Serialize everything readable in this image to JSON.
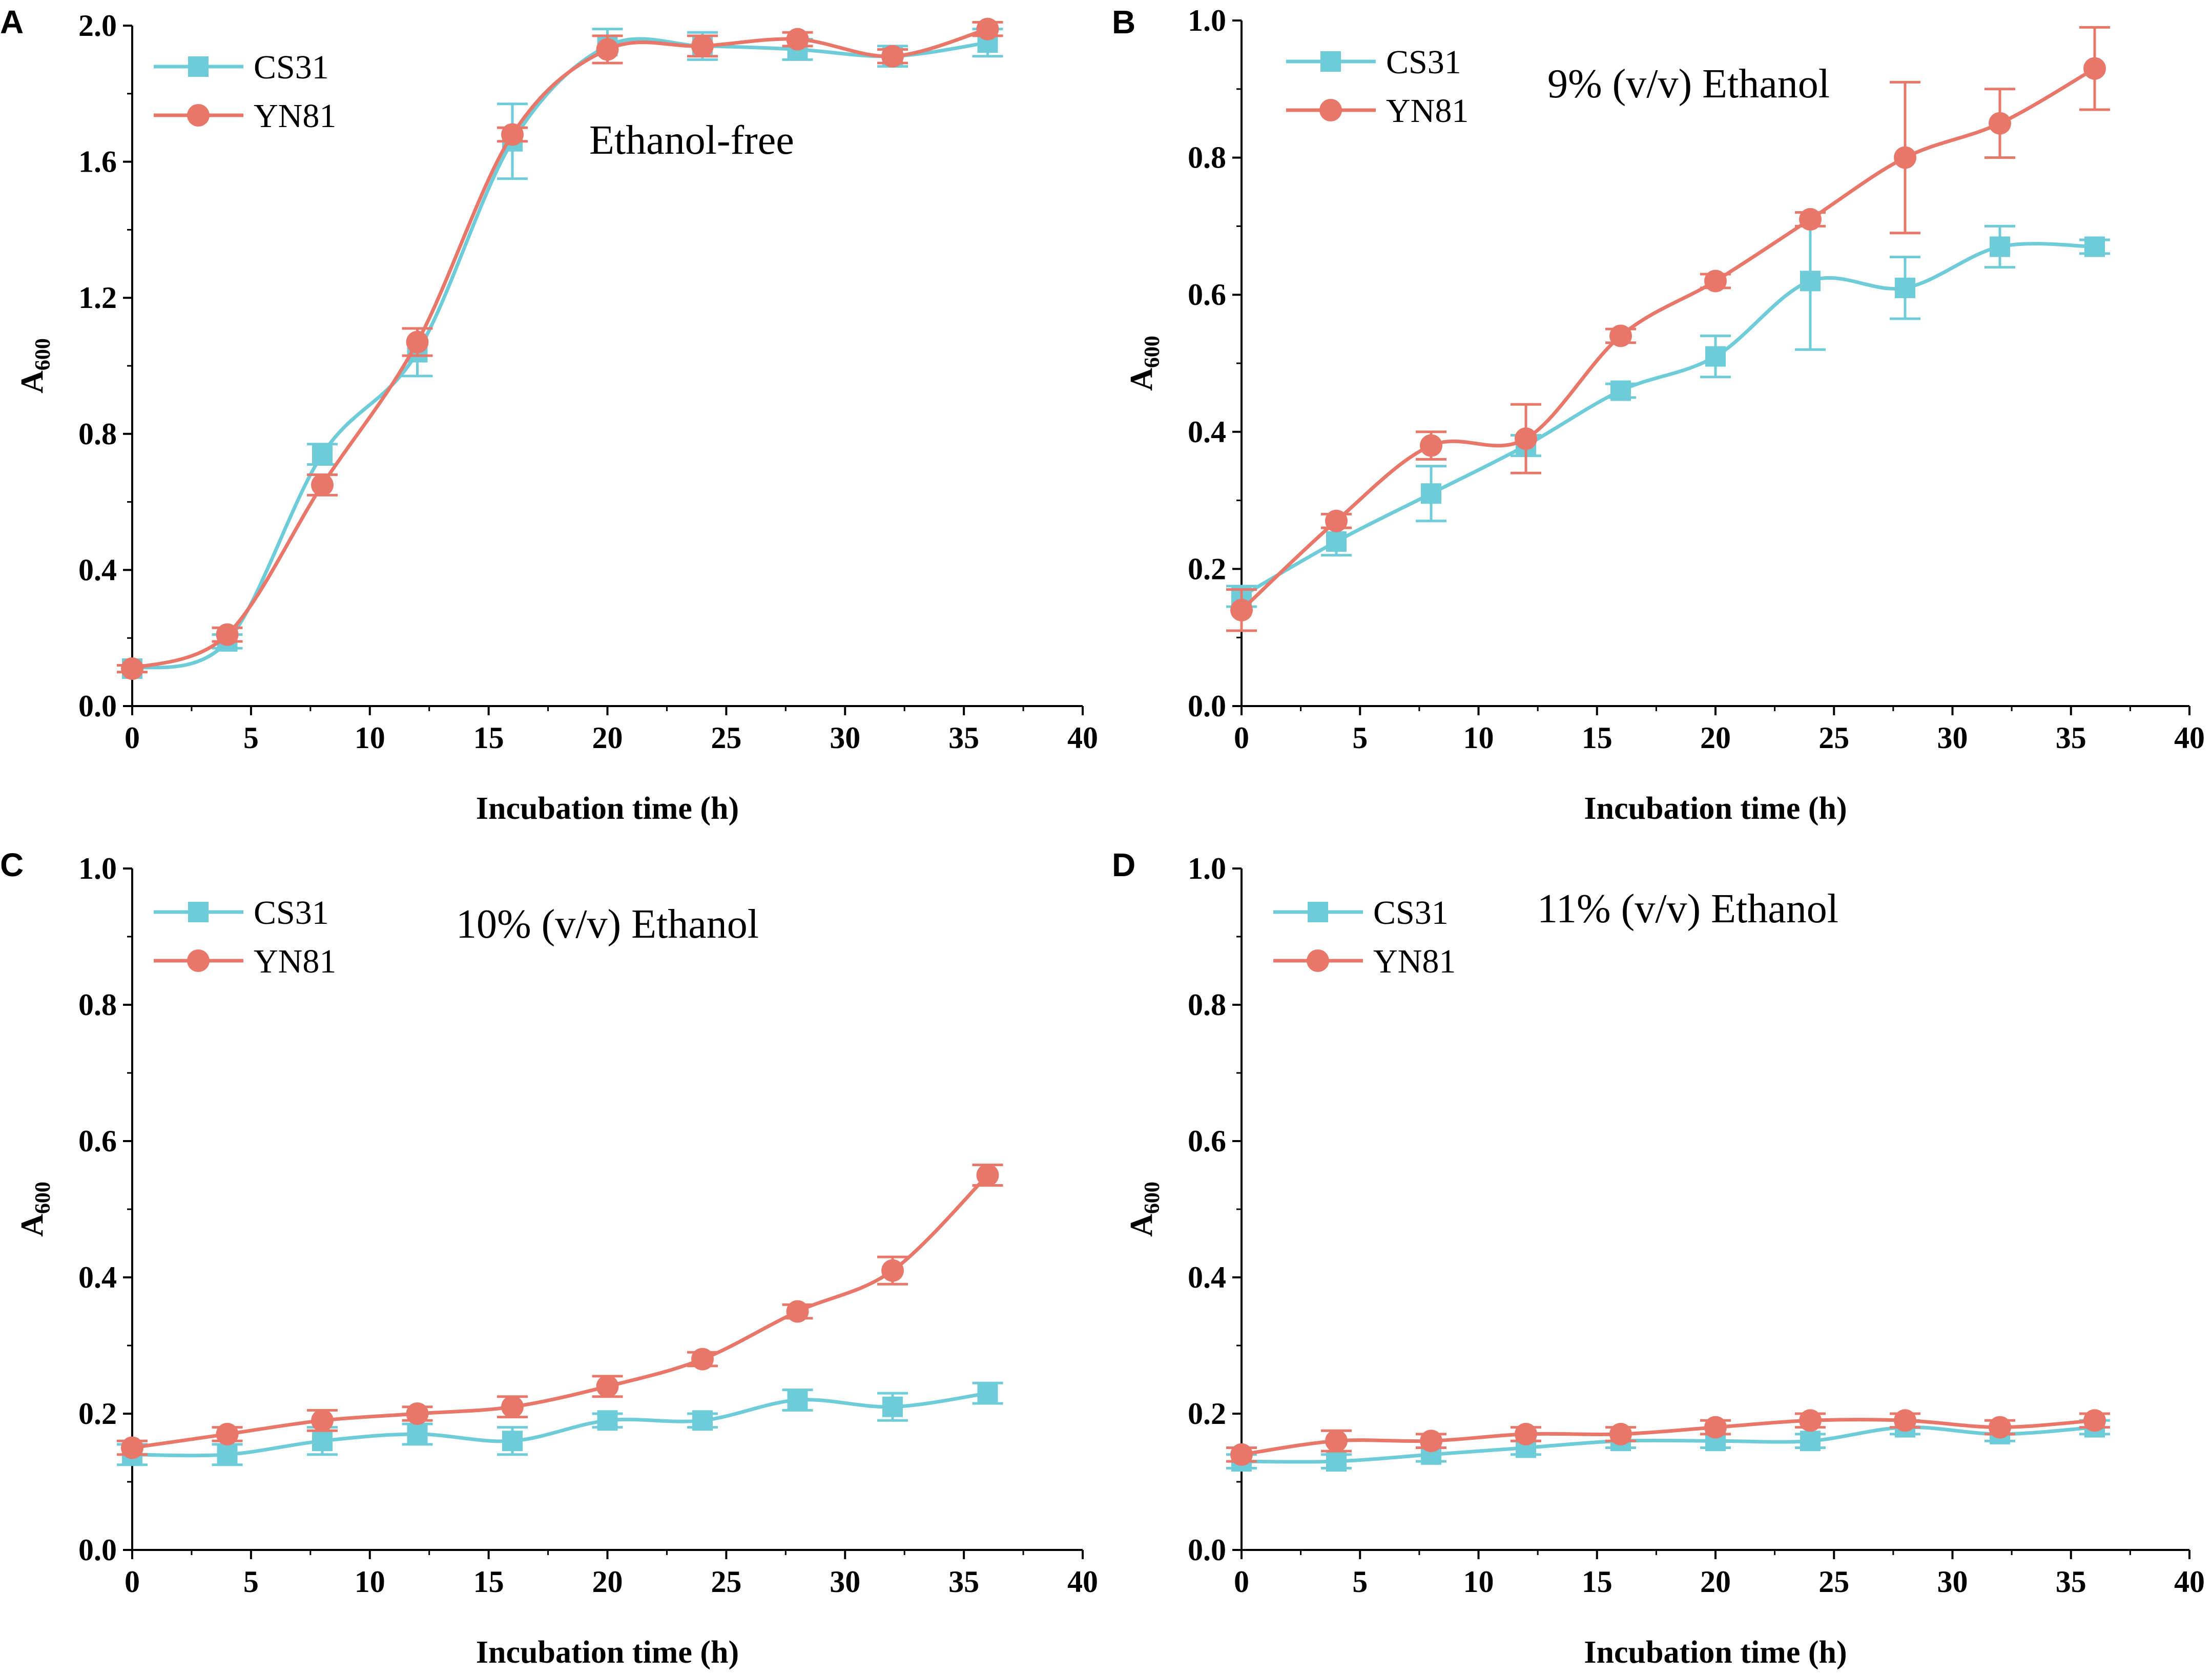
{
  "chart_data": [
    {
      "panel": "A",
      "type": "line",
      "title": "",
      "annotation": "Ethanol-free",
      "xlabel": "Incubation time (h)",
      "ylabel_main": "A",
      "ylabel_sub": "600",
      "xlim": [
        0,
        40
      ],
      "ylim": [
        0,
        2.0
      ],
      "xticks": [
        0,
        5,
        10,
        15,
        20,
        25,
        30,
        35,
        40
      ],
      "yticks": [
        0.0,
        0.4,
        0.8,
        1.2,
        1.6,
        2.0
      ],
      "ytick_labels": [
        "0.0",
        "0.4",
        "0.8",
        "1.2",
        "1.6",
        "2.0"
      ],
      "x": [
        0,
        4,
        8,
        12,
        16,
        20,
        24,
        28,
        32,
        36
      ],
      "series": [
        {
          "name": "CS31",
          "marker": "square",
          "color": "#6ecbd8",
          "values": [
            0.11,
            0.19,
            0.74,
            1.04,
            1.66,
            1.94,
            1.94,
            1.93,
            1.91,
            1.95
          ],
          "errors": [
            0.01,
            0.02,
            0.03,
            0.07,
            0.11,
            0.05,
            0.04,
            0.03,
            0.03,
            0.04
          ]
        },
        {
          "name": "YN81",
          "marker": "circle",
          "color": "#e8776a",
          "values": [
            0.11,
            0.21,
            0.65,
            1.07,
            1.68,
            1.93,
            1.94,
            1.96,
            1.91,
            1.99
          ],
          "errors": [
            0.01,
            0.02,
            0.03,
            0.04,
            0.02,
            0.04,
            0.03,
            0.02,
            0.02,
            0.02
          ]
        }
      ]
    },
    {
      "panel": "B",
      "type": "line",
      "title": "",
      "annotation": "9% (v/v) Ethanol",
      "xlabel": "Incubation time (h)",
      "ylabel_main": "A",
      "ylabel_sub": "600",
      "xlim": [
        0,
        40
      ],
      "ylim": [
        0,
        1.0
      ],
      "xticks": [
        0,
        5,
        10,
        15,
        20,
        25,
        30,
        35,
        40
      ],
      "yticks": [
        0.0,
        0.2,
        0.4,
        0.6,
        0.8,
        1.0
      ],
      "ytick_labels": [
        "0.0",
        "0.2",
        "0.4",
        "0.6",
        "0.8",
        "1.0"
      ],
      "x": [
        0,
        4,
        8,
        12,
        16,
        20,
        24,
        28,
        32,
        36
      ],
      "series": [
        {
          "name": "CS31",
          "marker": "square",
          "color": "#6ecbd8",
          "values": [
            0.16,
            0.24,
            0.31,
            0.38,
            0.46,
            0.51,
            0.62,
            0.61,
            0.67,
            0.67
          ],
          "errors": [
            0.015,
            0.02,
            0.04,
            0.015,
            0.01,
            0.03,
            0.1,
            0.045,
            0.03,
            0.01
          ]
        },
        {
          "name": "YN81",
          "marker": "circle",
          "color": "#e8776a",
          "values": [
            0.14,
            0.27,
            0.38,
            0.39,
            0.54,
            0.62,
            0.71,
            0.8,
            0.85,
            0.93
          ],
          "errors": [
            0.03,
            0.01,
            0.02,
            0.05,
            0.01,
            0.01,
            0.01,
            0.11,
            0.05,
            0.06
          ]
        }
      ]
    },
    {
      "panel": "C",
      "type": "line",
      "title": "",
      "annotation": "10% (v/v) Ethanol",
      "xlabel": "Incubation time (h)",
      "ylabel_main": "A",
      "ylabel_sub": "600",
      "xlim": [
        0,
        40
      ],
      "ylim": [
        0,
        1.0
      ],
      "xticks": [
        0,
        5,
        10,
        15,
        20,
        25,
        30,
        35,
        40
      ],
      "yticks": [
        0.0,
        0.2,
        0.4,
        0.6,
        0.8,
        1.0
      ],
      "ytick_labels": [
        "0.0",
        "0.2",
        "0.4",
        "0.6",
        "0.8",
        "1.0"
      ],
      "x": [
        0,
        4,
        8,
        12,
        16,
        20,
        24,
        28,
        32,
        36
      ],
      "series": [
        {
          "name": "CS31",
          "marker": "square",
          "color": "#6ecbd8",
          "values": [
            0.14,
            0.14,
            0.16,
            0.17,
            0.16,
            0.19,
            0.19,
            0.22,
            0.21,
            0.23
          ],
          "errors": [
            0.015,
            0.015,
            0.02,
            0.015,
            0.02,
            0.01,
            0.01,
            0.015,
            0.02,
            0.015
          ]
        },
        {
          "name": "YN81",
          "marker": "circle",
          "color": "#e8776a",
          "values": [
            0.15,
            0.17,
            0.19,
            0.2,
            0.21,
            0.24,
            0.28,
            0.35,
            0.41,
            0.55
          ],
          "errors": [
            0.01,
            0.01,
            0.015,
            0.01,
            0.015,
            0.015,
            0.01,
            0.01,
            0.02,
            0.015
          ]
        }
      ]
    },
    {
      "panel": "D",
      "type": "line",
      "title": "",
      "annotation": "11% (v/v) Ethanol",
      "xlabel": "Incubation time (h)",
      "ylabel_main": "A",
      "ylabel_sub": "600",
      "xlim": [
        0,
        40
      ],
      "ylim": [
        0,
        1.0
      ],
      "xticks": [
        0,
        5,
        10,
        15,
        20,
        25,
        30,
        35,
        40
      ],
      "yticks": [
        0.0,
        0.2,
        0.4,
        0.6,
        0.8,
        1.0
      ],
      "ytick_labels": [
        "0.0",
        "0.2",
        "0.4",
        "0.6",
        "0.8",
        "1.0"
      ],
      "x": [
        0,
        4,
        8,
        12,
        16,
        20,
        24,
        28,
        32,
        36
      ],
      "series": [
        {
          "name": "CS31",
          "marker": "square",
          "color": "#6ecbd8",
          "values": [
            0.13,
            0.13,
            0.14,
            0.15,
            0.16,
            0.16,
            0.16,
            0.18,
            0.17,
            0.18
          ],
          "errors": [
            0.01,
            0.01,
            0.01,
            0.01,
            0.01,
            0.01,
            0.01,
            0.01,
            0.01,
            0.01
          ]
        },
        {
          "name": "YN81",
          "marker": "circle",
          "color": "#e8776a",
          "values": [
            0.14,
            0.16,
            0.16,
            0.17,
            0.17,
            0.18,
            0.19,
            0.19,
            0.18,
            0.19
          ],
          "errors": [
            0.01,
            0.015,
            0.01,
            0.01,
            0.01,
            0.01,
            0.01,
            0.01,
            0.01,
            0.01
          ]
        }
      ]
    }
  ]
}
